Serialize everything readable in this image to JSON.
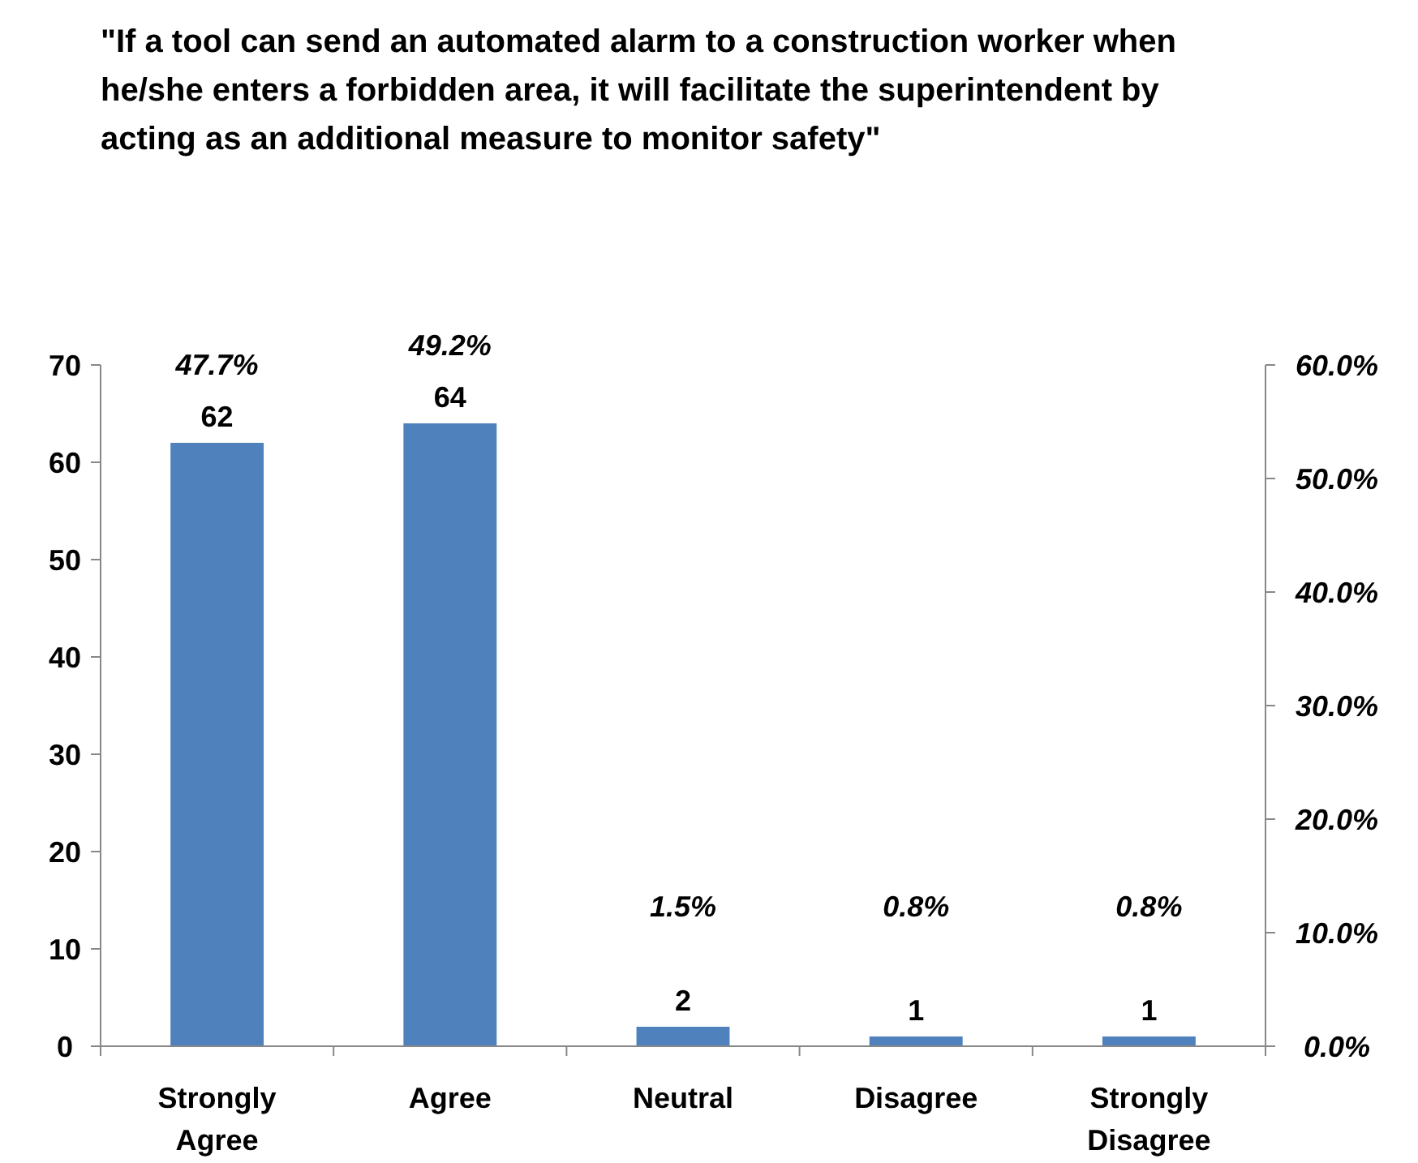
{
  "chart_data": {
    "type": "bar",
    "title": "\"If a tool can send an automated alarm to a construction worker when he/she enters a forbidden area, it will facilitate the superintendent by acting as an additional measure to monitor safety\"",
    "categories": [
      "Strongly Agree",
      "Agree",
      "Neutral",
      "Disagree",
      "Strongly Disagree"
    ],
    "values": [
      62,
      64,
      2,
      1,
      1
    ],
    "color": "#4f81bd",
    "data_labels": true,
    "ylim": [
      0,
      70
    ],
    "yticks": [
      0,
      10,
      20,
      30,
      40,
      50,
      60,
      70
    ],
    "y2lim": [
      0,
      60
    ],
    "y2ticks": [
      {
        "value": 0,
        "label": "0.0%"
      },
      {
        "value": 10,
        "label": "10.0%"
      },
      {
        "value": 20,
        "label": "20.0%"
      },
      {
        "value": 30,
        "label": "30.0%"
      },
      {
        "value": 40,
        "label": "40.0%"
      },
      {
        "value": 50,
        "label": "50.0%"
      },
      {
        "value": 60,
        "label": "60.0%"
      }
    ],
    "annotations": [
      "47.7%",
      "49.2%",
      "1.5%",
      "0.8%",
      "0.8%"
    ],
    "grid": false
  }
}
